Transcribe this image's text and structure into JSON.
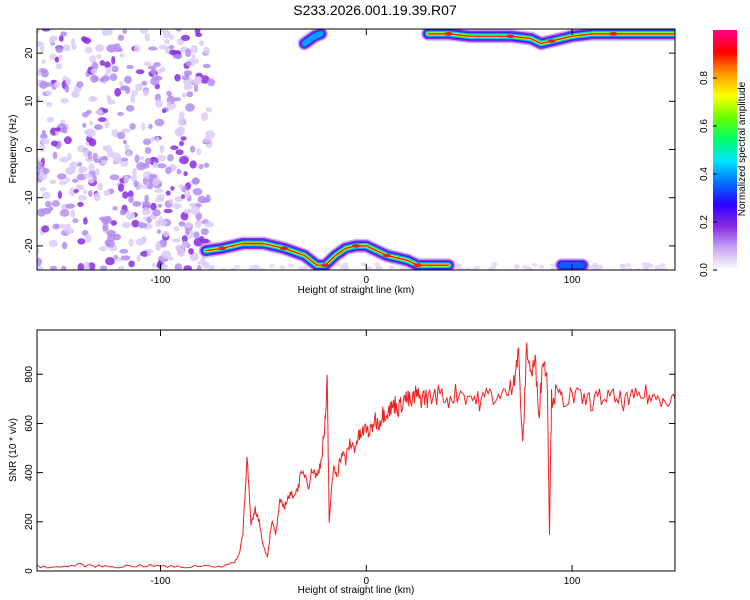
{
  "figure": {
    "title": "S233.2026.001.19.39.R07"
  },
  "chart_data": [
    {
      "type": "heatmap",
      "xlabel": "Height of straight line (km)",
      "ylabel": "Frequency (Hz)",
      "xlim": [
        -160,
        150
      ],
      "ylim": [
        -25,
        25
      ],
      "xticks": [
        -100,
        0,
        100
      ],
      "yticks": [
        -20,
        -10,
        0,
        10,
        20
      ],
      "colorbar": {
        "label": "Normalized spectral amplitude",
        "range": [
          0,
          1
        ],
        "ticks": [
          0.0,
          0.2,
          0.4,
          0.6,
          0.8
        ],
        "colors": [
          "#ffffff",
          "#c9a6f5",
          "#8a2be2",
          "#2b00ff",
          "#0070ff",
          "#00e5ff",
          "#00ff66",
          "#6bff00",
          "#ffff00",
          "#ff9900",
          "#ff0000",
          "#ff0090"
        ]
      },
      "noise_region_x": [
        -160,
        -75
      ],
      "ridges": [
        {
          "name": "lower",
          "x": [
            -78,
            -70,
            -60,
            -50,
            -40,
            -30,
            -24,
            -20,
            -15,
            -10,
            -5,
            0,
            5,
            10,
            15,
            20,
            25,
            30,
            40
          ],
          "y": [
            -21,
            -20.5,
            -19.5,
            -19.5,
            -20.5,
            -22,
            -24,
            -24,
            -22,
            -20.5,
            -20,
            -20,
            -21,
            -22,
            -22.5,
            -23,
            -24,
            -24,
            -24
          ],
          "peak_amplitude": 0.95
        },
        {
          "name": "upper",
          "x": [
            30,
            40,
            50,
            60,
            70,
            80,
            85,
            90,
            100,
            110,
            120,
            130,
            150
          ],
          "y": [
            24,
            24,
            23.5,
            23.5,
            23.5,
            23,
            22,
            22.5,
            23.5,
            24,
            24,
            24,
            24
          ],
          "peak_amplitude": 0.9
        },
        {
          "name": "upper-short",
          "x": [
            -30,
            -25,
            -22
          ],
          "y": [
            22,
            23.5,
            24
          ],
          "peak_amplitude": 0.4
        },
        {
          "name": "bottom-right",
          "x": [
            95,
            100,
            105
          ],
          "y": [
            -24,
            -24,
            -24
          ],
          "peak_amplitude": 0.35
        }
      ]
    },
    {
      "type": "line",
      "xlabel": "Height of straight line (km)",
      "ylabel": "SNR (10 * v/v)",
      "xlim": [
        -160,
        150
      ],
      "ylim": [
        0,
        980
      ],
      "xticks": [
        -100,
        0,
        100
      ],
      "yticks": [
        0,
        200,
        400,
        600,
        800
      ],
      "color": "#ee2222",
      "series": [
        {
          "x": [
            -160,
            -150,
            -140,
            -130,
            -120,
            -110,
            -100,
            -90,
            -80,
            -70,
            -65,
            -62,
            -60,
            -58,
            -56,
            -54,
            -52,
            -50,
            -48,
            -46,
            -44,
            -42,
            -40,
            -38,
            -36,
            -34,
            -32,
            -30,
            -28,
            -26,
            -24,
            -22,
            -20,
            -19,
            -18,
            -16,
            -14,
            -12,
            -10,
            -8,
            -6,
            -4,
            -2,
            0,
            2,
            4,
            6,
            8,
            10,
            12,
            14,
            16,
            18,
            20,
            22,
            24,
            26,
            28,
            30,
            35,
            40,
            45,
            50,
            55,
            60,
            65,
            70,
            72,
            74,
            76,
            78,
            80,
            82,
            84,
            86,
            88,
            89,
            90,
            92,
            95,
            100,
            105,
            110,
            115,
            120,
            125,
            130,
            135,
            140,
            145,
            150
          ],
          "y": [
            20,
            15,
            25,
            20,
            18,
            22,
            20,
            15,
            22,
            20,
            30,
            60,
            150,
            470,
            180,
            250,
            200,
            100,
            60,
            200,
            150,
            280,
            260,
            300,
            310,
            320,
            380,
            400,
            350,
            420,
            380,
            450,
            600,
            760,
            200,
            420,
            400,
            480,
            450,
            520,
            500,
            540,
            560,
            580,
            560,
            620,
            600,
            640,
            650,
            660,
            680,
            660,
            700,
            700,
            680,
            720,
            700,
            710,
            700,
            720,
            700,
            730,
            710,
            690,
            720,
            700,
            740,
            800,
            880,
            500,
            920,
            800,
            850,
            650,
            880,
            760,
            150,
            700,
            720,
            700,
            710,
            700,
            690,
            710,
            700,
            690,
            700,
            720,
            700,
            710,
            700
          ]
        }
      ]
    }
  ]
}
